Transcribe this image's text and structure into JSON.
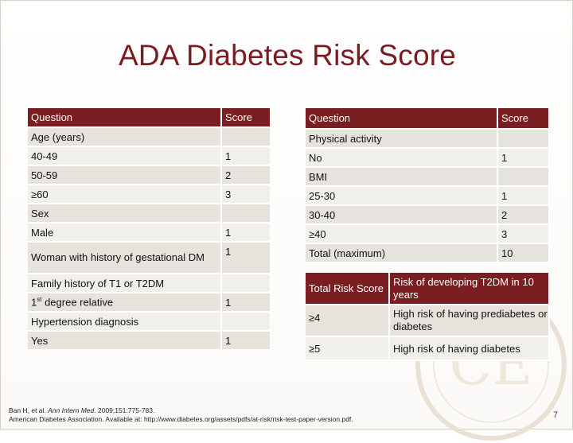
{
  "title": "ADA Diabetes Risk Score",
  "left_table": {
    "headers": [
      "Question",
      "Score"
    ],
    "rows": [
      {
        "q": "Age (years)",
        "s": ""
      },
      {
        "q": "40-49",
        "s": "1"
      },
      {
        "q": "50-59",
        "s": "2"
      },
      {
        "q": "≥60",
        "s": "3"
      },
      {
        "q": "Sex",
        "s": ""
      },
      {
        "q": "Male",
        "s": "1"
      },
      {
        "q": "Woman with history of gestational DM",
        "s": "1"
      },
      {
        "q": "Family history of T1 or T2DM",
        "s": ""
      },
      {
        "q_main": "1",
        "q_sup": "st",
        "q_rest": " degree relative",
        "s": "1"
      },
      {
        "q": "Hypertension diagnosis",
        "s": ""
      },
      {
        "q": "Yes",
        "s": "1"
      }
    ]
  },
  "right_table": {
    "headers": [
      "Question",
      "Score"
    ],
    "rows": [
      {
        "q": "Physical activity",
        "s": ""
      },
      {
        "q": "No",
        "s": "1"
      },
      {
        "q": "BMI",
        "s": ""
      },
      {
        "q": "25-30",
        "s": "1"
      },
      {
        "q": "30-40",
        "s": "2"
      },
      {
        "q": "≥40",
        "s": "3"
      },
      {
        "q": "Total (maximum)",
        "s": "10"
      }
    ]
  },
  "risk_table": {
    "headers": [
      "Total Risk Score",
      "Risk of developing T2DM in 10 years"
    ],
    "rows": [
      {
        "score": "≥4",
        "risk": "High risk of having prediabetes or diabetes"
      },
      {
        "score": "≥5",
        "risk": "High risk of having diabetes"
      }
    ]
  },
  "footer": {
    "ref1_pre": "Ban H, et al. ",
    "ref1_journal": "Ann Intern Med",
    "ref1_post": ". 2009;151:775-783.",
    "ref2": "American Diabetes Association. Available at: http://www.diabetes.org/assets/pdfs/at-risk/risk-test-paper-version.pdf."
  },
  "page_number": "7",
  "colors": {
    "header": "#7b1e22",
    "title": "#7a1d22",
    "row_shade": "#e6e3dc",
    "row_light": "#f1efea"
  }
}
